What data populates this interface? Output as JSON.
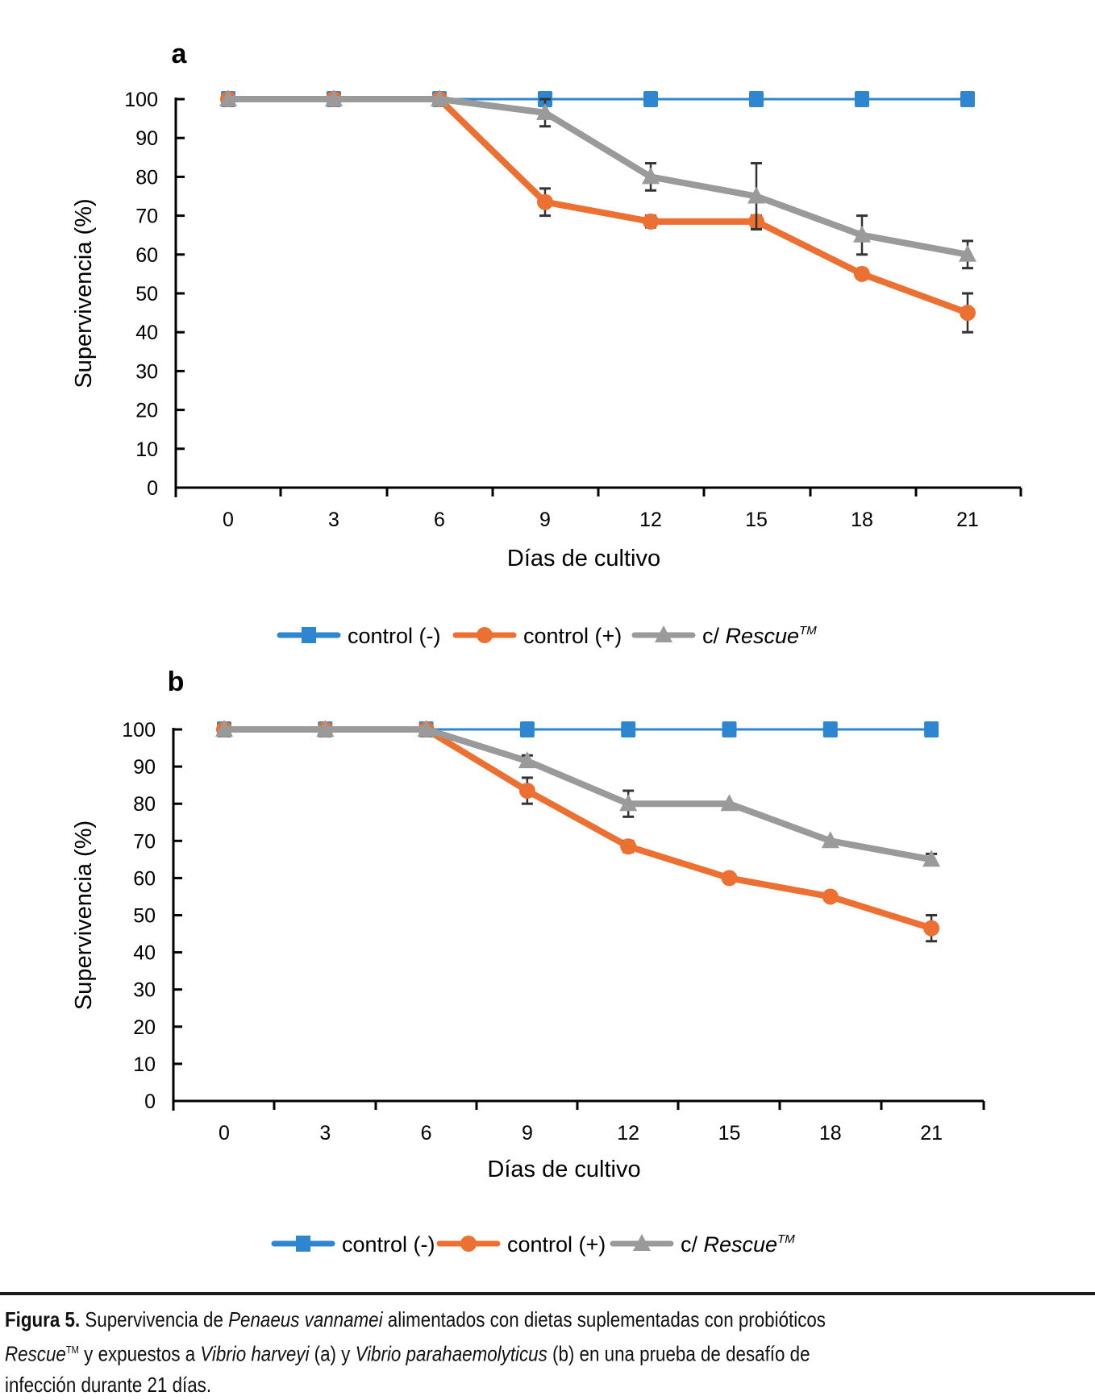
{
  "chart_data": [
    {
      "panel": "a",
      "type": "line",
      "title": "",
      "xlabel": "Días de cultivo",
      "ylabel": "Supervivencia (%)",
      "x": [
        0,
        3,
        6,
        9,
        12,
        15,
        18,
        21
      ],
      "x_tick_labels": [
        "0",
        "3",
        "6",
        "9",
        "12",
        "15",
        "18",
        "21"
      ],
      "y_tick_labels": [
        "0",
        "10",
        "20",
        "30",
        "40",
        "50",
        "60",
        "70",
        "80",
        "90",
        "100"
      ],
      "ylim": [
        0,
        100
      ],
      "grid": false,
      "legend_position": "bottom",
      "series": [
        {
          "name": "control (-)",
          "marker": "square",
          "color": "#2e86d1",
          "values": [
            100,
            100,
            100,
            100,
            100,
            100,
            100,
            100
          ],
          "errors": [
            0,
            0,
            0,
            0,
            0,
            0,
            0,
            0
          ]
        },
        {
          "name": "control (+)",
          "marker": "circle",
          "color": "#ec7032",
          "values": [
            100,
            100,
            100,
            73.5,
            68.5,
            68.5,
            55,
            45
          ],
          "errors": [
            0,
            0,
            0,
            3.5,
            1.5,
            1.5,
            1,
            5
          ]
        },
        {
          "name": "c/ Rescue™",
          "marker": "triangle",
          "color": "#9a9a9a",
          "values": [
            100,
            100,
            100,
            96.5,
            80,
            75,
            65,
            60
          ],
          "errors": [
            0,
            0,
            0,
            3.5,
            3.5,
            8.5,
            5,
            3.5
          ]
        }
      ]
    },
    {
      "panel": "b",
      "type": "line",
      "title": "",
      "xlabel": "Días de cultivo",
      "ylabel": "Supervivencia (%)",
      "x": [
        0,
        3,
        6,
        9,
        12,
        15,
        18,
        21
      ],
      "x_tick_labels": [
        "0",
        "3",
        "6",
        "9",
        "12",
        "15",
        "18",
        "21"
      ],
      "y_tick_labels": [
        "0",
        "10",
        "20",
        "30",
        "40",
        "50",
        "60",
        "70",
        "80",
        "90",
        "100"
      ],
      "ylim": [
        0,
        100
      ],
      "grid": false,
      "legend_position": "bottom",
      "series": [
        {
          "name": "control (-)",
          "marker": "square",
          "color": "#2e86d1",
          "values": [
            100,
            100,
            100,
            100,
            100,
            100,
            100,
            100
          ],
          "errors": [
            0,
            0,
            0,
            0,
            0,
            0,
            0,
            0
          ]
        },
        {
          "name": "control (+)",
          "marker": "circle",
          "color": "#ec7032",
          "values": [
            100,
            100,
            100,
            83.5,
            68.5,
            60,
            55,
            46.5
          ],
          "errors": [
            0,
            0,
            0,
            3.5,
            1.5,
            0.5,
            1,
            3.5
          ]
        },
        {
          "name": "c/ Rescue™",
          "marker": "triangle",
          "color": "#9a9a9a",
          "values": [
            100,
            100,
            100,
            91.5,
            80,
            80,
            70,
            65
          ],
          "errors": [
            0,
            0,
            0,
            1.5,
            3.5,
            0,
            0,
            1.5
          ]
        }
      ]
    }
  ],
  "legend": {
    "items": [
      "control (-)",
      "control (+)",
      "c/ "
    ],
    "rescue_italic": "Rescue",
    "tm": "TM"
  },
  "caption": {
    "label": "Figura 5.",
    "t1": " Supervivencia de ",
    "species": "Penaeus vannamei",
    "t2": " alimentados con dietas suplementadas con probióticos",
    "product": "Rescue",
    "tm": "TM",
    "t3": " y expuestos a ",
    "vibrio1": "Vibrio harveyi",
    "t4": " (a) y ",
    "vibrio2": "Vibrio parahaemolyticus",
    "t5": " (b) en una prueba de desafío de",
    "t6": "infección durante 21 días."
  }
}
